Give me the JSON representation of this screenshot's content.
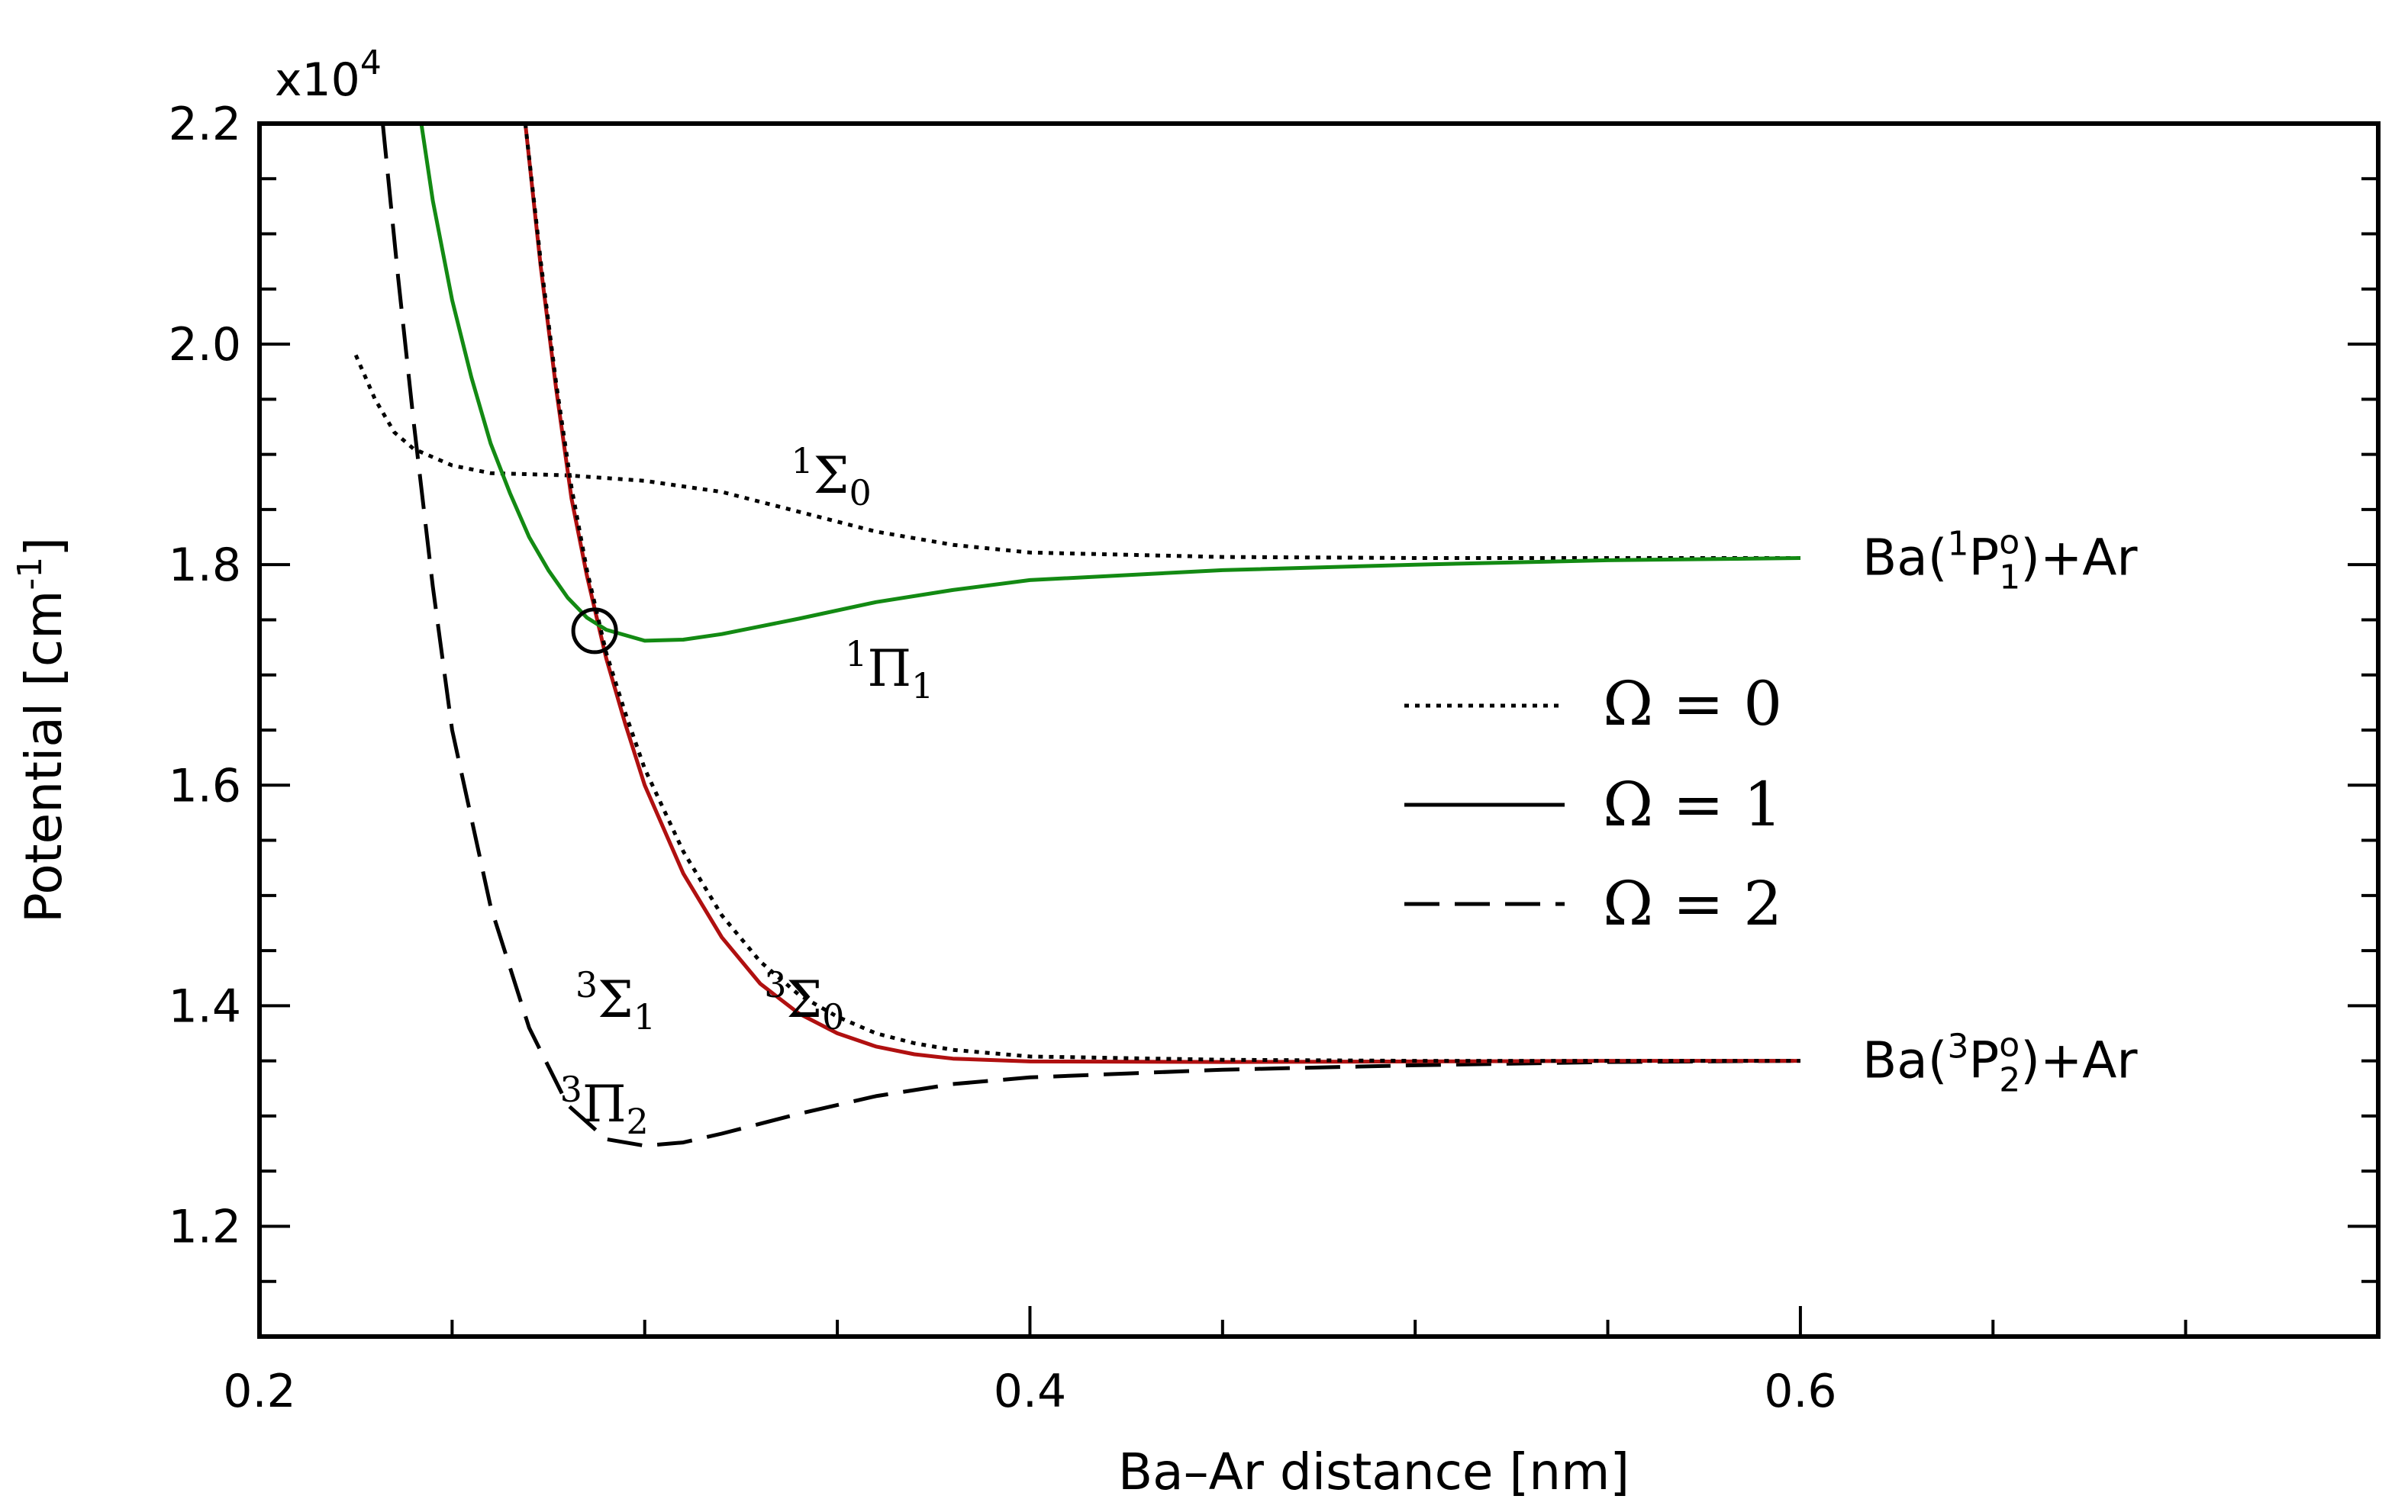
{
  "chart_data": {
    "type": "line",
    "title": "",
    "xlabel": "Ba–Ar distance [nm]",
    "ylabel": "Potential [cm",
    "ylabel_superscript": "-1",
    "ylabel_suffix": "]",
    "y_multiplier": "x10",
    "y_multiplier_exponent": "4",
    "xlim": [
      0.2,
      0.75
    ],
    "ylim": [
      1.1,
      2.2
    ],
    "x_ticks": [
      {
        "value": 0.2,
        "label": "0.2"
      },
      {
        "value": 0.4,
        "label": "0.4"
      },
      {
        "value": 0.6,
        "label": "0.6"
      }
    ],
    "y_ticks": [
      {
        "value": 1.2,
        "label": "1.2"
      },
      {
        "value": 1.4,
        "label": "1.4"
      },
      {
        "value": 1.6,
        "label": "1.6"
      },
      {
        "value": 1.8,
        "label": "1.8"
      },
      {
        "value": 2.0,
        "label": "2.0"
      },
      {
        "value": 2.2,
        "label": "2.2"
      }
    ],
    "grid": false,
    "legend_position": "center-right",
    "legend": [
      {
        "style": "dotted",
        "label": "Ω = 0"
      },
      {
        "style": "solid",
        "label": "Ω = 1"
      },
      {
        "style": "dashed",
        "label": "Ω = 2"
      }
    ],
    "colors": {
      "sigma0_1": "#000000",
      "pi1_1": "#138a13",
      "sigma1_3": "#b01010",
      "sigma0_3": "#000000",
      "pi2_3": "#000000"
    },
    "series": [
      {
        "name": "1Σ0",
        "style": "dotted",
        "x": [
          0.225,
          0.23,
          0.235,
          0.24,
          0.25,
          0.26,
          0.28,
          0.3,
          0.32,
          0.34,
          0.36,
          0.38,
          0.4,
          0.45,
          0.5,
          0.55,
          0.6
        ],
        "y": [
          1.99,
          1.95,
          1.92,
          1.905,
          1.89,
          1.883,
          1.881,
          1.876,
          1.866,
          1.848,
          1.83,
          1.818,
          1.811,
          1.807,
          1.806,
          1.806,
          1.806
        ]
      },
      {
        "name": "1Π1",
        "style": "solid",
        "x": [
          0.242,
          0.245,
          0.25,
          0.255,
          0.26,
          0.265,
          0.27,
          0.275,
          0.28,
          0.285,
          0.29,
          0.3,
          0.31,
          0.32,
          0.34,
          0.36,
          0.38,
          0.4,
          0.45,
          0.5,
          0.55,
          0.6
        ],
        "y": [
          2.2,
          2.13,
          2.04,
          1.97,
          1.91,
          1.865,
          1.825,
          1.795,
          1.77,
          1.752,
          1.741,
          1.731,
          1.732,
          1.737,
          1.751,
          1.766,
          1.777,
          1.786,
          1.795,
          1.8,
          1.804,
          1.806
        ]
      },
      {
        "name": "3Σ1",
        "style": "solid",
        "x": [
          0.269,
          0.273,
          0.277,
          0.281,
          0.285,
          0.29,
          0.295,
          0.3,
          0.31,
          0.32,
          0.33,
          0.34,
          0.35,
          0.36,
          0.37,
          0.38,
          0.4,
          0.45,
          0.5,
          0.55,
          0.6
        ],
        "y": [
          2.2,
          2.07,
          1.96,
          1.86,
          1.79,
          1.715,
          1.655,
          1.6,
          1.52,
          1.462,
          1.42,
          1.393,
          1.375,
          1.363,
          1.356,
          1.352,
          1.3495,
          1.349,
          1.3495,
          1.35,
          1.35
        ]
      },
      {
        "name": "3Σ0",
        "style": "dotted",
        "x": [
          0.269,
          0.273,
          0.277,
          0.281,
          0.285,
          0.29,
          0.295,
          0.3,
          0.31,
          0.32,
          0.33,
          0.34,
          0.35,
          0.36,
          0.37,
          0.38,
          0.4,
          0.45,
          0.5,
          0.55,
          0.6
        ],
        "y": [
          2.2,
          2.075,
          1.965,
          1.87,
          1.795,
          1.72,
          1.665,
          1.615,
          1.54,
          1.482,
          1.44,
          1.41,
          1.39,
          1.375,
          1.366,
          1.36,
          1.354,
          1.351,
          1.35,
          1.35,
          1.35
        ]
      },
      {
        "name": "3Π2",
        "style": "dashed",
        "x": [
          0.232,
          0.236,
          0.24,
          0.245,
          0.25,
          0.26,
          0.27,
          0.28,
          0.29,
          0.3,
          0.31,
          0.32,
          0.34,
          0.36,
          0.38,
          0.4,
          0.45,
          0.5,
          0.55,
          0.6
        ],
        "y": [
          2.2,
          2.06,
          1.93,
          1.78,
          1.65,
          1.49,
          1.38,
          1.31,
          1.279,
          1.273,
          1.276,
          1.284,
          1.302,
          1.318,
          1.329,
          1.335,
          1.342,
          1.346,
          1.349,
          1.35
        ]
      }
    ],
    "curve_labels": [
      {
        "sup": "1",
        "base": "Σ",
        "sub": "0",
        "x": 0.338,
        "y": 1.865
      },
      {
        "sup": "1",
        "base": "Π",
        "sub": "1",
        "x": 0.352,
        "y": 1.69
      },
      {
        "sup": "3",
        "base": "Σ",
        "sub": "1",
        "x": 0.282,
        "y": 1.39
      },
      {
        "sup": "3",
        "base": "Σ",
        "sub": "0",
        "x": 0.331,
        "y": 1.39
      },
      {
        "sup": "3",
        "base": "Π",
        "sub": "2",
        "x": 0.278,
        "y": 1.295
      }
    ],
    "asymptote_labels": [
      {
        "prefix": "Ba(",
        "sup": "1",
        "letter": "P",
        "subsup_top": "o",
        "subsup_bottom": "1",
        "suffix": ")+Ar",
        "y": 1.806
      },
      {
        "prefix": "Ba(",
        "sup": "3",
        "letter": "P",
        "subsup_top": "o",
        "subsup_bottom": "2",
        "suffix": ")+Ar",
        "y": 1.35
      }
    ],
    "marker": {
      "type": "circle",
      "x": 0.287,
      "y": 1.74
    }
  }
}
